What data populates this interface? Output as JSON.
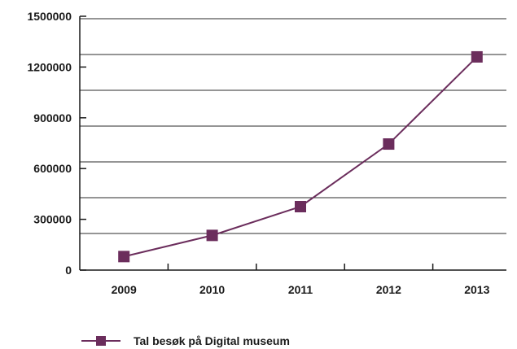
{
  "chart_data": {
    "type": "line",
    "categories": [
      "2009",
      "2010",
      "2011",
      "2012",
      "2013"
    ],
    "series": [
      {
        "name": "Tal besøk på Digital museum",
        "values": [
          80000,
          205000,
          375000,
          745000,
          1260000
        ],
        "color": "#6b2d5c"
      }
    ],
    "yticks": [
      "0",
      "300000",
      "600000",
      "900000",
      "1200000",
      "1500000"
    ],
    "ylim": [
      0,
      1500000
    ],
    "grid": true,
    "legend": "bottom-left",
    "title": "",
    "xlabel": "",
    "ylabel": ""
  }
}
